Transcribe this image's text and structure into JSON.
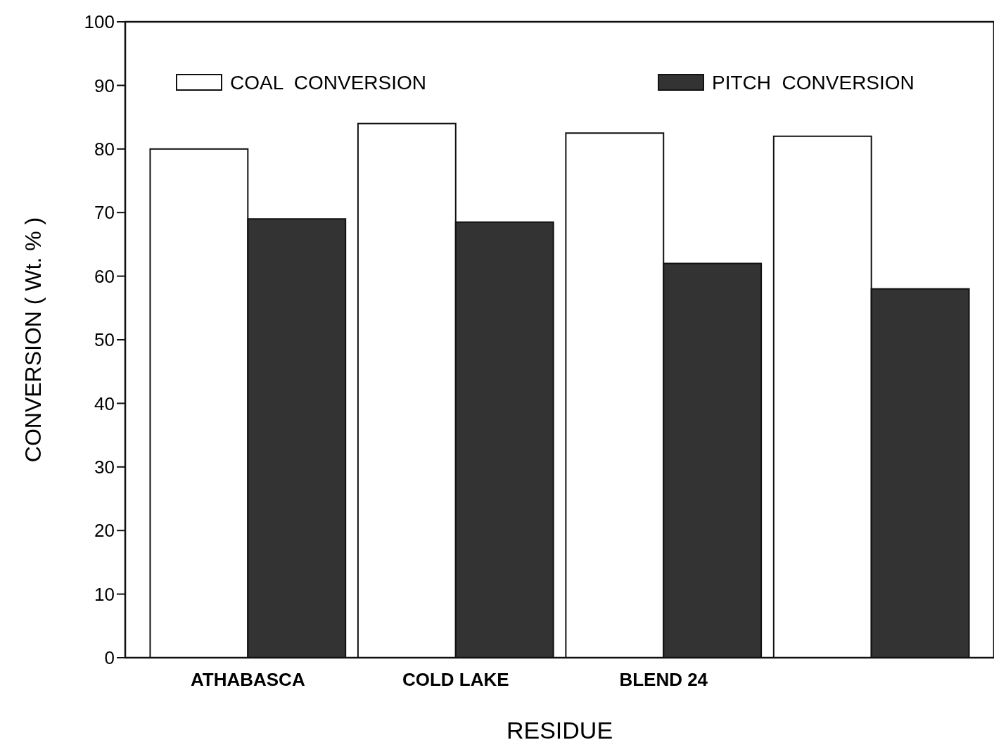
{
  "chart_data": {
    "type": "bar",
    "xlabel": "RESIDUE",
    "ylabel": "CONVERSION ( Wt. % )",
    "categories": [
      "ATHABASCA",
      "COLD LAKE",
      "BLEND 24",
      null
    ],
    "series": [
      {
        "name": "COAL  CONVERSION",
        "color": "#ffffff",
        "values": [
          80,
          84,
          82.5,
          82
        ]
      },
      {
        "name": "PITCH  CONVERSION",
        "color": "#333333",
        "values": [
          69,
          68.5,
          62,
          58
        ]
      }
    ],
    "ylim": [
      0,
      100
    ],
    "yticks": [
      0,
      10,
      20,
      30,
      40,
      50,
      60,
      70,
      80,
      90,
      100
    ],
    "grid": false,
    "legend": "top"
  }
}
